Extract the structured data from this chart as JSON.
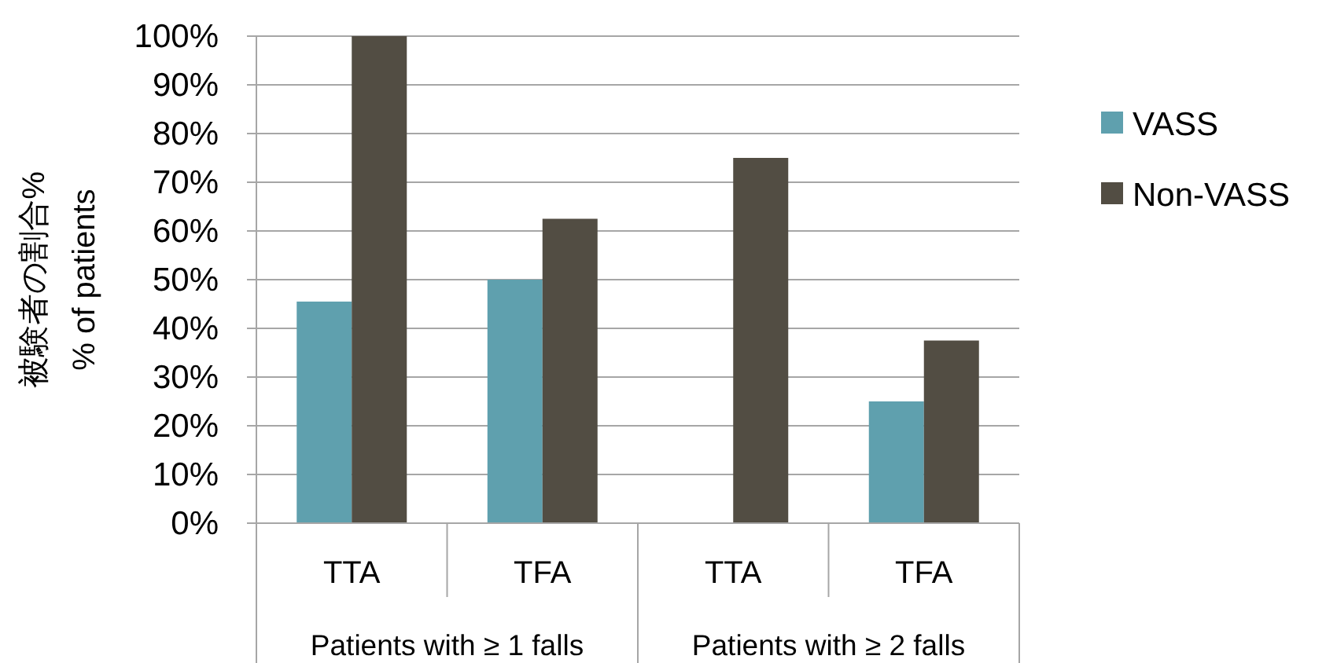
{
  "chart_data": {
    "type": "bar",
    "ylabel": "被験者の割合%\n% of patients",
    "categories": [
      "TTA",
      "TFA",
      "TTA",
      "TFA"
    ],
    "series": [
      {
        "name": "VASS",
        "color": "#5fa0ae",
        "values": [
          45.5,
          50,
          0,
          25
        ]
      },
      {
        "name": "Non-VASS",
        "color": "#524d43",
        "values": [
          100,
          62.5,
          75,
          37.5
        ]
      }
    ],
    "ylim": [
      0,
      100
    ],
    "yticks": [
      {
        "value": 0,
        "label": "0%"
      },
      {
        "value": 10,
        "label": "10%"
      },
      {
        "value": 20,
        "label": "20%"
      },
      {
        "value": 30,
        "label": "30%"
      },
      {
        "value": 40,
        "label": "40%"
      },
      {
        "value": 50,
        "label": "50%"
      },
      {
        "value": 60,
        "label": "60%"
      },
      {
        "value": 70,
        "label": "70%"
      },
      {
        "value": 80,
        "label": "80%"
      },
      {
        "value": 90,
        "label": "90%"
      },
      {
        "value": 100,
        "label": "100%"
      }
    ],
    "grid": "y",
    "legend": "right",
    "annotations": [
      "Patients with ≥ 1 falls",
      "Patients with ≥ 2 falls"
    ]
  }
}
